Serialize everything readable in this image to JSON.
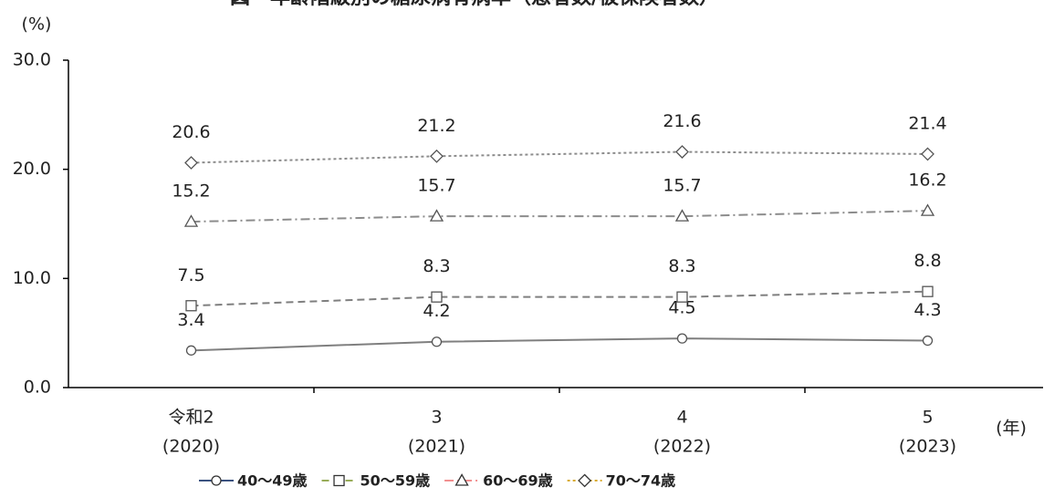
{
  "chart_data": {
    "type": "line",
    "title": "図　年齢階級別の糖尿病有病率（患者数/被保険者数）",
    "y_label": "(%)",
    "x_label": "(年)",
    "categories": [
      [
        "令和2",
        "(2020)"
      ],
      [
        "3",
        "(2021)"
      ],
      [
        "4",
        "(2022)"
      ],
      [
        "5",
        "(2023)"
      ]
    ],
    "ylim": [
      0,
      30
    ],
    "yticks": [
      {
        "value": 0,
        "label": "0.0"
      },
      {
        "value": 10,
        "label": "10.0"
      },
      {
        "value": 20,
        "label": "20.0"
      },
      {
        "value": 30,
        "label": "30.0"
      }
    ],
    "series": [
      {
        "name": "40〜49歳",
        "color": "#7f7f7f",
        "legend_color": "#1f3a6e",
        "dash": "solid",
        "marker": "circle",
        "values": [
          3.4,
          4.2,
          4.5,
          4.3
        ]
      },
      {
        "name": "50〜59歳",
        "color": "#7f7f7f",
        "legend_color": "#8aa040",
        "dash": "dashed",
        "marker": "square",
        "values": [
          7.5,
          8.3,
          8.3,
          8.8
        ]
      },
      {
        "name": "60〜69歳",
        "color": "#8c8c8c",
        "legend_color": "#f08080",
        "dash": "dashdot",
        "marker": "triangle",
        "values": [
          15.2,
          15.7,
          15.7,
          16.2
        ]
      },
      {
        "name": "70〜74歳",
        "color": "#8c8c8c",
        "legend_color": "#d4a017",
        "dash": "dotted",
        "marker": "diamond",
        "values": [
          20.6,
          21.2,
          21.6,
          21.4
        ]
      }
    ]
  }
}
